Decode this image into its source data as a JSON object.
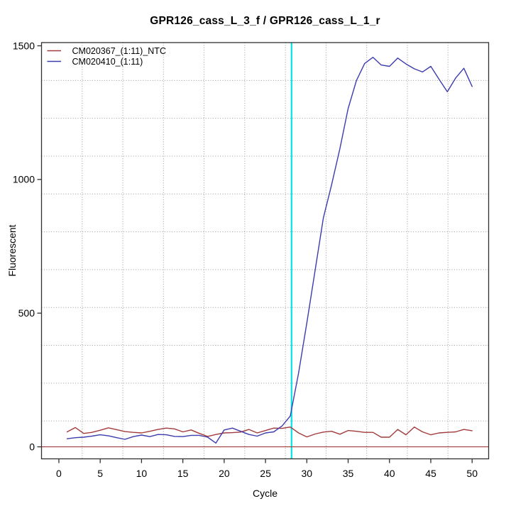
{
  "chart_data": {
    "type": "line",
    "title": "GPR126_cass_L_3_f / GPR126_cass_L_1_r",
    "xlabel": "Cycle",
    "ylabel": "Fluorescent",
    "x_ticks": [
      0,
      5,
      10,
      15,
      20,
      25,
      30,
      35,
      40,
      45,
      50
    ],
    "y_ticks": [
      0,
      500,
      1000,
      1500
    ],
    "xlim": [
      -2.1,
      52
    ],
    "ylim": [
      -45,
      1512
    ],
    "grid": {
      "style": "dotted",
      "nx": 11,
      "ny": 11,
      "color": "#9a9a9a"
    },
    "legend_position": "top-left",
    "frame_color": "#2f2f2f",
    "vline": {
      "x": 28.15,
      "color": "#00e6e6"
    },
    "hline": {
      "y": 0,
      "color": "#a23b3b"
    },
    "x": [
      1,
      2,
      3,
      4,
      5,
      6,
      7,
      8,
      9,
      10,
      11,
      12,
      13,
      14,
      15,
      16,
      17,
      18,
      19,
      20,
      21,
      22,
      23,
      24,
      25,
      26,
      27,
      28,
      29,
      30,
      31,
      32,
      33,
      34,
      35,
      36,
      37,
      38,
      39,
      40,
      41,
      42,
      43,
      44,
      45,
      46,
      47,
      48,
      49,
      50
    ],
    "series": [
      {
        "name": "CM020367_(1:11)_NTC",
        "color": "#a23b3b",
        "values": [
          56,
          72,
          50,
          54,
          62,
          71,
          64,
          57,
          54,
          52,
          58,
          65,
          70,
          67,
          56,
          63,
          50,
          39,
          46,
          52,
          53,
          55,
          65,
          52,
          61,
          70,
          69,
          74,
          52,
          37,
          48,
          55,
          58,
          47,
          61,
          58,
          54,
          54,
          36,
          36,
          65,
          45,
          74,
          56,
          45,
          52,
          54,
          56,
          65,
          60
        ]
      },
      {
        "name": "CM020410_(1:11)",
        "color": "#3c3cae",
        "values": [
          30,
          34,
          36,
          40,
          45,
          41,
          34,
          28,
          38,
          44,
          38,
          46,
          45,
          39,
          38,
          43,
          43,
          36,
          14,
          63,
          70,
          58,
          46,
          40,
          52,
          56,
          78,
          115,
          276,
          463,
          660,
          856,
          980,
          1115,
          1265,
          1370,
          1434,
          1457,
          1428,
          1423,
          1454,
          1432,
          1414,
          1402,
          1423,
          1375,
          1328,
          1379,
          1416,
          1348
        ]
      }
    ]
  }
}
